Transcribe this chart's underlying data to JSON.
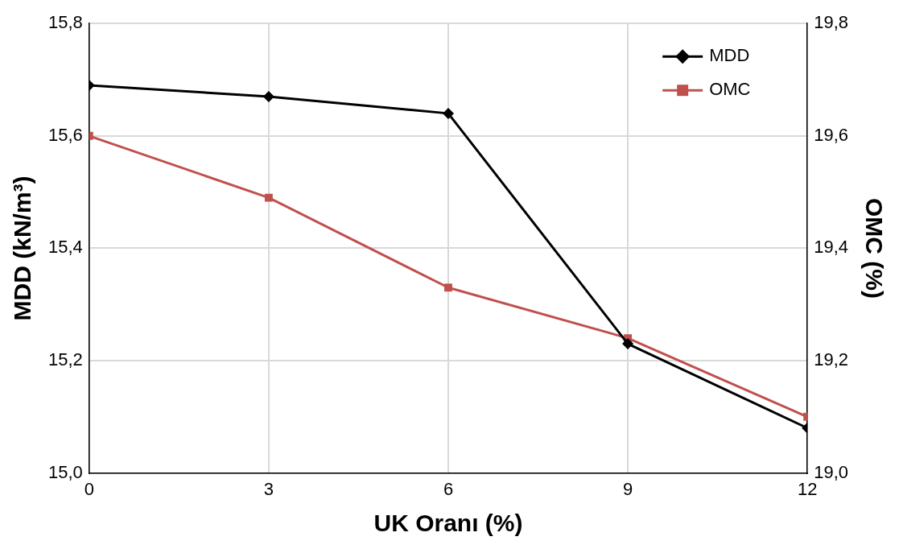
{
  "chart_data": {
    "type": "line",
    "xlabel": "UK Oranı (%)",
    "ylabel": "MDD (kN/m³)",
    "y2label": "OMC (%)",
    "x": [
      0,
      3,
      6,
      9,
      12
    ],
    "series": [
      {
        "name": "MDD",
        "color": "#000000",
        "values": [
          15.69,
          15.67,
          15.64,
          15.23,
          15.08
        ],
        "marker": "diamond"
      },
      {
        "name": "OMC",
        "color": "#c0504d",
        "values": [
          19.6,
          19.49,
          19.33,
          19.24,
          19.1
        ],
        "marker": "square",
        "axis": "y2"
      }
    ],
    "xlim": [
      0,
      12
    ],
    "xticks": [
      0,
      3,
      6,
      9,
      12
    ],
    "ylim": [
      15.0,
      15.8
    ],
    "yticks": [
      {
        "value": 15.0,
        "label": "15,0"
      },
      {
        "value": 15.2,
        "label": "15,2"
      },
      {
        "value": 15.4,
        "label": "15,4"
      },
      {
        "value": 15.6,
        "label": "15,6"
      },
      {
        "value": 15.8,
        "label": "15,8"
      }
    ],
    "y2lim": [
      19.0,
      19.8
    ],
    "y2ticks": [
      {
        "value": 19.0,
        "label": "19,0"
      },
      {
        "value": 19.2,
        "label": "19,2"
      },
      {
        "value": 19.4,
        "label": "19,4"
      },
      {
        "value": 19.6,
        "label": "19,6"
      },
      {
        "value": 19.8,
        "label": "19,8"
      }
    ],
    "grid": true,
    "legend": "top right",
    "line_style": "solid"
  }
}
